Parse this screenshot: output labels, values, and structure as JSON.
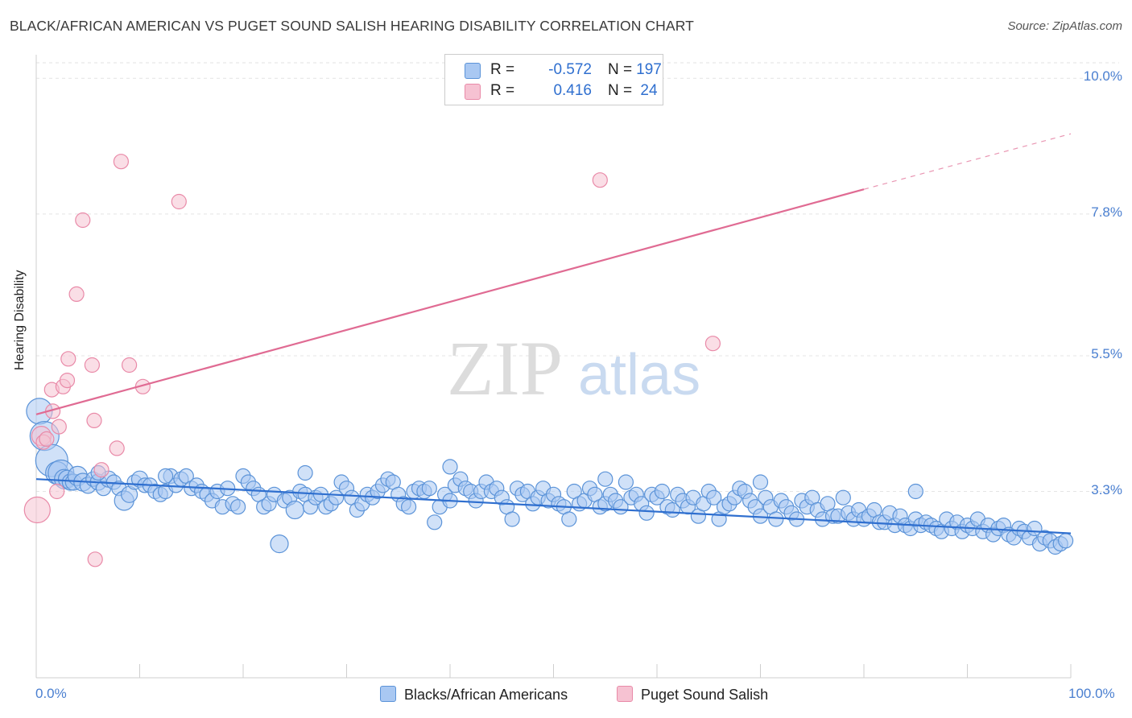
{
  "header": {
    "title": "BLACK/AFRICAN AMERICAN VS PUGET SOUND SALISH HEARING DISABILITY CORRELATION CHART",
    "source": "Source: ZipAtlas.com"
  },
  "legend": {
    "rows": [
      {
        "r_label": "R =",
        "r_value": "-0.572",
        "n_label": "N =",
        "n_value": "197"
      },
      {
        "r_label": "R =",
        "r_value": "0.416",
        "n_label": "N =",
        "n_value": "24"
      }
    ]
  },
  "bottom_legend": {
    "blue": "Blacks/African Americans",
    "pink": "Puget Sound Salish"
  },
  "watermark": {
    "zip": "ZIP",
    "atlas": "atlas"
  },
  "colors": {
    "blue_fill": "#a9c8f2",
    "blue_stroke": "#5b93d8",
    "blue_line": "#2f6fcf",
    "pink_fill": "#f6c2d2",
    "pink_stroke": "#e98aa8",
    "pink_line": "#e06b93",
    "tick_text": "#4a7fd0"
  },
  "chart_data": {
    "type": "scatter",
    "ylabel": "Hearing Disability",
    "xlim": [
      0,
      100
    ],
    "ylim": [
      1.0,
      10.0
    ],
    "x_tick_labels": [
      "0.0%",
      "100.0%"
    ],
    "y_ticks": [
      {
        "value": 10.0,
        "label": "10.0%"
      },
      {
        "value": 7.8,
        "label": "7.8%"
      },
      {
        "value": 5.5,
        "label": "5.5%"
      },
      {
        "value": 3.3,
        "label": "3.3%"
      }
    ],
    "series": [
      {
        "name": "Blacks/African Americans",
        "color": "#5b93d8",
        "trend": {
          "x0": 0,
          "y0": 3.5,
          "x1": 100,
          "y1": 2.62
        },
        "points": [
          [
            0.3,
            4.6,
            16
          ],
          [
            0.8,
            4.2,
            18
          ],
          [
            1.5,
            3.8,
            20
          ],
          [
            2.0,
            3.6,
            14
          ],
          [
            2.4,
            3.6,
            16
          ],
          [
            2.7,
            3.5,
            12
          ],
          [
            3.0,
            3.5,
            11
          ],
          [
            3.3,
            3.45,
            10
          ],
          [
            3.6,
            3.45,
            10
          ],
          [
            4.0,
            3.55,
            12
          ],
          [
            4.5,
            3.45,
            11
          ],
          [
            5.0,
            3.4,
            10
          ],
          [
            5.5,
            3.5,
            9
          ],
          [
            6.0,
            3.45,
            10
          ],
          [
            6.5,
            3.35,
            9
          ],
          [
            7.0,
            3.5,
            10
          ],
          [
            7.5,
            3.45,
            9
          ],
          [
            8.0,
            3.35,
            9
          ],
          [
            8.5,
            3.15,
            12
          ],
          [
            9.0,
            3.25,
            10
          ],
          [
            9.5,
            3.45,
            9
          ],
          [
            10.0,
            3.5,
            10
          ],
          [
            10.5,
            3.4,
            9
          ],
          [
            11.0,
            3.4,
            9
          ],
          [
            11.5,
            3.3,
            9
          ],
          [
            12.0,
            3.25,
            9
          ],
          [
            12.5,
            3.3,
            9
          ],
          [
            13.0,
            3.55,
            9
          ],
          [
            13.5,
            3.4,
            9
          ],
          [
            14.0,
            3.5,
            9
          ],
          [
            14.5,
            3.55,
            9
          ],
          [
            15.0,
            3.35,
            9
          ],
          [
            15.5,
            3.4,
            9
          ],
          [
            16.0,
            3.3,
            9
          ],
          [
            16.5,
            3.25,
            9
          ],
          [
            17.0,
            3.15,
            9
          ],
          [
            17.5,
            3.3,
            9
          ],
          [
            18.0,
            3.05,
            9
          ],
          [
            18.5,
            3.35,
            9
          ],
          [
            19.0,
            3.1,
            9
          ],
          [
            19.5,
            3.05,
            9
          ],
          [
            20.0,
            3.55,
            9
          ],
          [
            20.5,
            3.45,
            9
          ],
          [
            21.0,
            3.35,
            9
          ],
          [
            21.5,
            3.25,
            9
          ],
          [
            22.0,
            3.05,
            9
          ],
          [
            22.5,
            3.1,
            9
          ],
          [
            23.0,
            3.25,
            9
          ],
          [
            23.5,
            2.45,
            11
          ],
          [
            24.0,
            3.15,
            9
          ],
          [
            24.5,
            3.2,
            9
          ],
          [
            25.0,
            3.0,
            11
          ],
          [
            25.5,
            3.3,
            9
          ],
          [
            26.0,
            3.25,
            9
          ],
          [
            26.5,
            3.05,
            9
          ],
          [
            27.0,
            3.2,
            9
          ],
          [
            27.5,
            3.25,
            9
          ],
          [
            28.0,
            3.05,
            9
          ],
          [
            28.5,
            3.1,
            9
          ],
          [
            29.0,
            3.2,
            9
          ],
          [
            29.5,
            3.45,
            9
          ],
          [
            30.0,
            3.35,
            9
          ],
          [
            30.5,
            3.2,
            9
          ],
          [
            31.0,
            3.0,
            9
          ],
          [
            31.5,
            3.1,
            9
          ],
          [
            32.0,
            3.25,
            9
          ],
          [
            32.5,
            3.2,
            9
          ],
          [
            33.0,
            3.3,
            9
          ],
          [
            33.5,
            3.4,
            9
          ],
          [
            34.0,
            3.5,
            9
          ],
          [
            34.5,
            3.45,
            9
          ],
          [
            35.0,
            3.25,
            9
          ],
          [
            35.5,
            3.1,
            9
          ],
          [
            36.0,
            3.05,
            9
          ],
          [
            36.5,
            3.3,
            9
          ],
          [
            37.0,
            3.35,
            9
          ],
          [
            37.5,
            3.3,
            9
          ],
          [
            38.0,
            3.35,
            9
          ],
          [
            38.5,
            2.8,
            9
          ],
          [
            39.0,
            3.05,
            9
          ],
          [
            39.5,
            3.25,
            9
          ],
          [
            40.0,
            3.15,
            9
          ],
          [
            40.5,
            3.4,
            9
          ],
          [
            41.0,
            3.5,
            9
          ],
          [
            41.5,
            3.35,
            9
          ],
          [
            42.0,
            3.3,
            9
          ],
          [
            42.5,
            3.15,
            9
          ],
          [
            43.0,
            3.3,
            9
          ],
          [
            43.5,
            3.45,
            9
          ],
          [
            44.0,
            3.3,
            9
          ],
          [
            44.5,
            3.35,
            9
          ],
          [
            45.0,
            3.2,
            9
          ],
          [
            45.5,
            3.05,
            9
          ],
          [
            46.0,
            2.85,
            9
          ],
          [
            46.5,
            3.35,
            9
          ],
          [
            47.0,
            3.25,
            9
          ],
          [
            47.5,
            3.3,
            9
          ],
          [
            48.0,
            3.1,
            9
          ],
          [
            48.5,
            3.2,
            9
          ],
          [
            49.0,
            3.35,
            9
          ],
          [
            49.5,
            3.15,
            9
          ],
          [
            50.0,
            3.25,
            9
          ],
          [
            50.5,
            3.1,
            9
          ],
          [
            51.0,
            3.05,
            9
          ],
          [
            51.5,
            2.85,
            9
          ],
          [
            52.0,
            3.3,
            9
          ],
          [
            52.5,
            3.1,
            9
          ],
          [
            53.0,
            3.15,
            9
          ],
          [
            53.5,
            3.35,
            9
          ],
          [
            54.0,
            3.25,
            9
          ],
          [
            54.5,
            3.05,
            9
          ],
          [
            55.0,
            3.1,
            9
          ],
          [
            55.5,
            3.25,
            9
          ],
          [
            56.0,
            3.15,
            9
          ],
          [
            56.5,
            3.05,
            9
          ],
          [
            57.0,
            3.45,
            9
          ],
          [
            57.5,
            3.2,
            9
          ],
          [
            58.0,
            3.25,
            9
          ],
          [
            58.5,
            3.1,
            9
          ],
          [
            59.0,
            2.95,
            9
          ],
          [
            59.5,
            3.25,
            9
          ],
          [
            60.0,
            3.2,
            9
          ],
          [
            60.5,
            3.3,
            9
          ],
          [
            61.0,
            3.05,
            9
          ],
          [
            61.5,
            3.0,
            9
          ],
          [
            62.0,
            3.25,
            9
          ],
          [
            62.5,
            3.15,
            9
          ],
          [
            63.0,
            3.05,
            9
          ],
          [
            63.5,
            3.2,
            9
          ],
          [
            64.0,
            2.9,
            9
          ],
          [
            64.5,
            3.1,
            9
          ],
          [
            65.0,
            3.3,
            9
          ],
          [
            65.5,
            3.2,
            9
          ],
          [
            66.0,
            2.85,
            9
          ],
          [
            66.5,
            3.05,
            9
          ],
          [
            67.0,
            3.1,
            9
          ],
          [
            67.5,
            3.2,
            9
          ],
          [
            68.0,
            3.35,
            9
          ],
          [
            68.5,
            3.3,
            9
          ],
          [
            69.0,
            3.15,
            9
          ],
          [
            69.5,
            3.05,
            9
          ],
          [
            70.0,
            2.9,
            9
          ],
          [
            70.5,
            3.2,
            9
          ],
          [
            71.0,
            3.05,
            9
          ],
          [
            71.5,
            2.85,
            9
          ],
          [
            72.0,
            3.15,
            9
          ],
          [
            72.5,
            3.05,
            9
          ],
          [
            73.0,
            2.95,
            9
          ],
          [
            73.5,
            2.85,
            9
          ],
          [
            74.0,
            3.15,
            9
          ],
          [
            74.5,
            3.05,
            9
          ],
          [
            75.0,
            3.2,
            9
          ],
          [
            75.5,
            3.0,
            9
          ],
          [
            76.0,
            2.85,
            9
          ],
          [
            76.5,
            3.1,
            9
          ],
          [
            77.0,
            2.9,
            9
          ],
          [
            77.5,
            2.9,
            9
          ],
          [
            78.0,
            3.2,
            9
          ],
          [
            78.5,
            2.95,
            9
          ],
          [
            79.0,
            2.85,
            9
          ],
          [
            79.5,
            3.0,
            9
          ],
          [
            80.0,
            2.85,
            9
          ],
          [
            80.5,
            2.9,
            9
          ],
          [
            81.0,
            3.0,
            9
          ],
          [
            81.5,
            2.8,
            9
          ],
          [
            82.0,
            2.8,
            9
          ],
          [
            82.5,
            2.95,
            9
          ],
          [
            83.0,
            2.75,
            9
          ],
          [
            83.5,
            2.9,
            9
          ],
          [
            84.0,
            2.75,
            9
          ],
          [
            84.5,
            2.7,
            9
          ],
          [
            85.0,
            2.85,
            9
          ],
          [
            85.5,
            2.75,
            9
          ],
          [
            86.0,
            2.8,
            9
          ],
          [
            86.5,
            2.75,
            9
          ],
          [
            87.0,
            2.7,
            9
          ],
          [
            87.5,
            2.65,
            9
          ],
          [
            88.0,
            2.85,
            9
          ],
          [
            88.5,
            2.7,
            9
          ],
          [
            89.0,
            2.8,
            9
          ],
          [
            89.5,
            2.65,
            9
          ],
          [
            90.0,
            2.75,
            9
          ],
          [
            90.5,
            2.7,
            9
          ],
          [
            91.0,
            2.85,
            9
          ],
          [
            91.5,
            2.65,
            9
          ],
          [
            92.0,
            2.75,
            9
          ],
          [
            92.5,
            2.6,
            9
          ],
          [
            93.0,
            2.7,
            9
          ],
          [
            93.5,
            2.75,
            9
          ],
          [
            94.0,
            2.6,
            9
          ],
          [
            94.5,
            2.55,
            9
          ],
          [
            95.0,
            2.7,
            9
          ],
          [
            95.5,
            2.65,
            9
          ],
          [
            96.0,
            2.55,
            9
          ],
          [
            96.5,
            2.7,
            9
          ],
          [
            97.0,
            2.45,
            9
          ],
          [
            97.5,
            2.55,
            9
          ],
          [
            98.0,
            2.5,
            9
          ],
          [
            98.5,
            2.4,
            9
          ],
          [
            99.0,
            2.45,
            9
          ],
          [
            99.5,
            2.5,
            9
          ],
          [
            6.0,
            3.6,
            9
          ],
          [
            12.5,
            3.55,
            9
          ],
          [
            26.0,
            3.6,
            9
          ],
          [
            40.0,
            3.7,
            9
          ],
          [
            55.0,
            3.5,
            9
          ],
          [
            70.0,
            3.45,
            9
          ],
          [
            85.0,
            3.3,
            9
          ]
        ]
      },
      {
        "name": "Puget Sound Salish",
        "color": "#e98aa8",
        "trend": {
          "x0": 0,
          "y0": 4.55,
          "x1": 80,
          "y1": 8.2,
          "dash_to_x": 100,
          "dash_to_y": 9.1
        },
        "points": [
          [
            0.1,
            3.0,
            16
          ],
          [
            0.5,
            4.2,
            12
          ],
          [
            0.7,
            4.1,
            9
          ],
          [
            1.5,
            4.95,
            9
          ],
          [
            1.6,
            4.6,
            9
          ],
          [
            2.0,
            3.3,
            9
          ],
          [
            2.2,
            4.35,
            9
          ],
          [
            2.6,
            5.0,
            9
          ],
          [
            3.0,
            5.1,
            9
          ],
          [
            3.1,
            5.45,
            9
          ],
          [
            3.9,
            6.5,
            9
          ],
          [
            4.5,
            7.7,
            9
          ],
          [
            5.4,
            5.35,
            9
          ],
          [
            5.6,
            4.45,
            9
          ],
          [
            5.7,
            2.2,
            9
          ],
          [
            6.3,
            3.65,
            9
          ],
          [
            7.8,
            4.0,
            9
          ],
          [
            8.2,
            8.65,
            9
          ],
          [
            9.0,
            5.35,
            9
          ],
          [
            10.3,
            5.0,
            9
          ],
          [
            13.8,
            8.0,
            9
          ],
          [
            54.5,
            8.35,
            9
          ],
          [
            65.4,
            5.7,
            9
          ],
          [
            1.0,
            4.15,
            9
          ]
        ]
      }
    ]
  }
}
